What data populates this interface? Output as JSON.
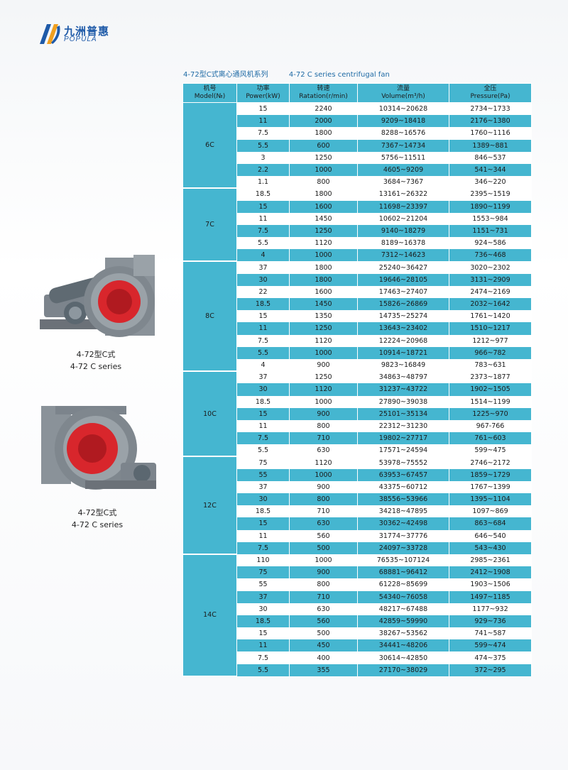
{
  "brand": {
    "name_cn": "九洲普惠",
    "name_en": "POPULA"
  },
  "heading": {
    "cn": "4-72型C式离心通风机系列",
    "en": "4-72 C series centrifugal fan"
  },
  "products": [
    {
      "caption_cn": "4-72型C式",
      "caption_en": "4-72 C series"
    },
    {
      "caption_cn": "4-72型C式",
      "caption_en": "4-72 C series"
    }
  ],
  "colors": {
    "accent": "#45b6d0",
    "fan_red": "#d8262c",
    "brand_blue": "#1e5aa8"
  },
  "table": {
    "headers": [
      {
        "cn": "机号",
        "en": "Model(№)"
      },
      {
        "cn": "功率",
        "en": "Power(kW)"
      },
      {
        "cn": "转速",
        "en": "Ratation(r/min)"
      },
      {
        "cn": "流量",
        "en": "Volume(m³/h)"
      },
      {
        "cn": "全压",
        "en": "Pressure(Pa)"
      }
    ],
    "groups": [
      {
        "model": "6C",
        "rows": [
          [
            "15",
            "2240",
            "10314~20628",
            "2734~1733"
          ],
          [
            "11",
            "2000",
            "9209~18418",
            "2176~1380"
          ],
          [
            "7.5",
            "1800",
            "8288~16576",
            "1760~1116"
          ],
          [
            "5.5",
            "600",
            "7367~14734",
            "1389~881"
          ],
          [
            "3",
            "1250",
            "5756~11511",
            "846~537"
          ],
          [
            "2.2",
            "1000",
            "4605~9209",
            "541~344"
          ],
          [
            "1.1",
            "800",
            "3684~7367",
            "346~220"
          ]
        ]
      },
      {
        "model": "7C",
        "rows": [
          [
            "18.5",
            "1800",
            "13161~26322",
            "2395~1519"
          ],
          [
            "15",
            "1600",
            "11698~23397",
            "1890~1199"
          ],
          [
            "11",
            "1450",
            "10602~21204",
            "1553~984"
          ],
          [
            "7.5",
            "1250",
            "9140~18279",
            "1151~731"
          ],
          [
            "5.5",
            "1120",
            "8189~16378",
            "924~586"
          ],
          [
            "4",
            "1000",
            "7312~14623",
            "736~468"
          ]
        ]
      },
      {
        "model": "8C",
        "rows": [
          [
            "37",
            "1800",
            "25240~36427",
            "3020~2302"
          ],
          [
            "30",
            "1800",
            "19646~28105",
            "3131~2909"
          ],
          [
            "22",
            "1600",
            "17463~27407",
            "2474~2169"
          ],
          [
            "18.5",
            "1450",
            "15826~26869",
            "2032~1642"
          ],
          [
            "15",
            "1350",
            "14735~25274",
            "1761~1420"
          ],
          [
            "11",
            "1250",
            "13643~23402",
            "1510~1217"
          ],
          [
            "7.5",
            "1120",
            "12224~20968",
            "1212~977"
          ],
          [
            "5.5",
            "1000",
            "10914~18721",
            "966~782"
          ],
          [
            "4",
            "900",
            "9823~16849",
            "783~631"
          ]
        ]
      },
      {
        "model": "10C",
        "rows": [
          [
            "37",
            "1250",
            "34863~48797",
            "2373~1877"
          ],
          [
            "30",
            "1120",
            "31237~43722",
            "1902~1505"
          ],
          [
            "18.5",
            "1000",
            "27890~39038",
            "1514~1199"
          ],
          [
            "15",
            "900",
            "25101~35134",
            "1225~970"
          ],
          [
            "11",
            "800",
            "22312~31230",
            "967-766"
          ],
          [
            "7.5",
            "710",
            "19802~27717",
            "761~603"
          ],
          [
            "5.5",
            "630",
            "17571~24594",
            "599~475"
          ]
        ]
      },
      {
        "model": "12C",
        "rows": [
          [
            "75",
            "1120",
            "53978~75552",
            "2746~2172"
          ],
          [
            "55",
            "1000",
            "63953~67457",
            "1859~1729"
          ],
          [
            "37",
            "900",
            "43375~60712",
            "1767~1399"
          ],
          [
            "30",
            "800",
            "38556~53966",
            "1395~1104"
          ],
          [
            "18.5",
            "710",
            "34218~47895",
            "1097~869"
          ],
          [
            "15",
            "630",
            "30362~42498",
            "863~684"
          ],
          [
            "11",
            "560",
            "31774~37776",
            "646~540"
          ],
          [
            "7.5",
            "500",
            "24097~33728",
            "543~430"
          ]
        ]
      },
      {
        "model": "14C",
        "rows": [
          [
            "110",
            "1000",
            "76535~107124",
            "2985~2361"
          ],
          [
            "75",
            "900",
            "68881~96412",
            "2412~1908"
          ],
          [
            "55",
            "800",
            "61228~85699",
            "1903~1506"
          ],
          [
            "37",
            "710",
            "54340~76058",
            "1497~1185"
          ],
          [
            "30",
            "630",
            "48217~67488",
            "1177~932"
          ],
          [
            "18.5",
            "560",
            "42859~59990",
            "929~736"
          ],
          [
            "15",
            "500",
            "38267~53562",
            "741~587"
          ],
          [
            "11",
            "450",
            "34441~48206",
            "599~474"
          ],
          [
            "7.5",
            "400",
            "30614~42850",
            "474~375"
          ],
          [
            "5.5",
            "355",
            "27170~38029",
            "372~295"
          ]
        ]
      }
    ]
  }
}
